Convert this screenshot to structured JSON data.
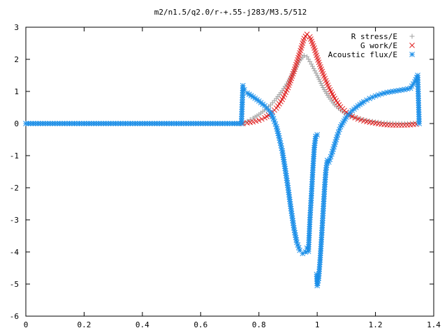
{
  "chart_data": {
    "type": "scatter",
    "title": "m2/n1.5/q2.0/r-+.55-j283/M3.5/512",
    "xlabel": "",
    "ylabel": "",
    "xlim": [
      0,
      1.4
    ],
    "ylim": [
      -6,
      3
    ],
    "xticks": [
      "0",
      "0.2",
      "0.4",
      "0.6",
      "0.8",
      "1",
      "1.2",
      "1.4"
    ],
    "yticks": [
      "3",
      "2",
      "1",
      "0",
      "-1",
      "-2",
      "-3",
      "-4",
      "-5",
      "-6"
    ],
    "legend_position": "top-right",
    "grid": false,
    "series": [
      {
        "name": "R stress/E",
        "color": "#a0a0a0",
        "marker": "plus",
        "points": [
          [
            0.0,
            0
          ],
          [
            0.05,
            0
          ],
          [
            0.1,
            0
          ],
          [
            0.15,
            0
          ],
          [
            0.2,
            0
          ],
          [
            0.25,
            0
          ],
          [
            0.3,
            0
          ],
          [
            0.35,
            0
          ],
          [
            0.4,
            0
          ],
          [
            0.45,
            0
          ],
          [
            0.5,
            0
          ],
          [
            0.55,
            0
          ],
          [
            0.6,
            0
          ],
          [
            0.65,
            0
          ],
          [
            0.7,
            0
          ],
          [
            0.745,
            0
          ],
          [
            0.76,
            0.07
          ],
          [
            0.78,
            0.17
          ],
          [
            0.8,
            0.28
          ],
          [
            0.82,
            0.42
          ],
          [
            0.84,
            0.58
          ],
          [
            0.86,
            0.78
          ],
          [
            0.88,
            1.02
          ],
          [
            0.9,
            1.3
          ],
          [
            0.92,
            1.62
          ],
          [
            0.94,
            1.96
          ],
          [
            0.955,
            2.12
          ],
          [
            0.965,
            2.08
          ],
          [
            0.98,
            1.85
          ],
          [
            1.0,
            1.5
          ],
          [
            1.02,
            1.12
          ],
          [
            1.04,
            0.82
          ],
          [
            1.06,
            0.58
          ],
          [
            1.08,
            0.42
          ],
          [
            1.1,
            0.3
          ],
          [
            1.12,
            0.22
          ],
          [
            1.14,
            0.16
          ],
          [
            1.16,
            0.12
          ],
          [
            1.18,
            0.08
          ],
          [
            1.2,
            0.05
          ],
          [
            1.22,
            0.03
          ],
          [
            1.25,
            0.01
          ],
          [
            1.28,
            0.0
          ],
          [
            1.31,
            0.0
          ],
          [
            1.34,
            0.02
          ]
        ]
      },
      {
        "name": "G work/E",
        "color": "#e02020",
        "marker": "cross",
        "points": [
          [
            0.745,
            0.0
          ],
          [
            0.76,
            0.02
          ],
          [
            0.78,
            0.05
          ],
          [
            0.8,
            0.1
          ],
          [
            0.82,
            0.18
          ],
          [
            0.84,
            0.3
          ],
          [
            0.86,
            0.48
          ],
          [
            0.88,
            0.75
          ],
          [
            0.9,
            1.12
          ],
          [
            0.92,
            1.62
          ],
          [
            0.94,
            2.2
          ],
          [
            0.955,
            2.65
          ],
          [
            0.965,
            2.78
          ],
          [
            0.975,
            2.7
          ],
          [
            0.99,
            2.35
          ],
          [
            1.0,
            2.05
          ],
          [
            1.02,
            1.55
          ],
          [
            1.04,
            1.12
          ],
          [
            1.06,
            0.78
          ],
          [
            1.08,
            0.52
          ],
          [
            1.1,
            0.35
          ],
          [
            1.12,
            0.22
          ],
          [
            1.14,
            0.14
          ],
          [
            1.16,
            0.08
          ],
          [
            1.18,
            0.04
          ],
          [
            1.2,
            0.01
          ],
          [
            1.22,
            -0.02
          ],
          [
            1.24,
            -0.04
          ],
          [
            1.26,
            -0.05
          ],
          [
            1.28,
            -0.05
          ],
          [
            1.3,
            -0.05
          ],
          [
            1.32,
            -0.04
          ],
          [
            1.34,
            -0.02
          ]
        ]
      },
      {
        "name": "Acoustic flux/E",
        "color": "#1a8ee8",
        "marker": "star",
        "points": [
          [
            0.0,
            0
          ],
          [
            0.05,
            0
          ],
          [
            0.1,
            0
          ],
          [
            0.15,
            0
          ],
          [
            0.2,
            0
          ],
          [
            0.25,
            0
          ],
          [
            0.3,
            0
          ],
          [
            0.35,
            0
          ],
          [
            0.4,
            0
          ],
          [
            0.45,
            0
          ],
          [
            0.5,
            0
          ],
          [
            0.55,
            0
          ],
          [
            0.6,
            0
          ],
          [
            0.65,
            0
          ],
          [
            0.7,
            0
          ],
          [
            0.74,
            0
          ],
          [
            0.745,
            1.18
          ],
          [
            0.75,
            1.05
          ],
          [
            0.76,
            0.95
          ],
          [
            0.78,
            0.83
          ],
          [
            0.8,
            0.7
          ],
          [
            0.82,
            0.55
          ],
          [
            0.84,
            0.35
          ],
          [
            0.85,
            0.15
          ],
          [
            0.86,
            -0.1
          ],
          [
            0.87,
            -0.45
          ],
          [
            0.88,
            -0.85
          ],
          [
            0.89,
            -1.4
          ],
          [
            0.9,
            -2.0
          ],
          [
            0.91,
            -2.65
          ],
          [
            0.92,
            -3.25
          ],
          [
            0.93,
            -3.7
          ],
          [
            0.94,
            -3.95
          ],
          [
            0.95,
            -4.05
          ],
          [
            0.96,
            -4.0
          ],
          [
            0.965,
            -3.88
          ],
          [
            0.97,
            -3.98
          ],
          [
            0.975,
            -3.0
          ],
          [
            0.98,
            -2.25
          ],
          [
            0.985,
            -1.45
          ],
          [
            0.99,
            -0.75
          ],
          [
            0.995,
            -0.4
          ],
          [
            1.0,
            -0.35
          ],
          [
            0.998,
            -4.7
          ],
          [
            1.0,
            -5.05
          ],
          [
            1.005,
            -4.82
          ],
          [
            1.01,
            -4.25
          ],
          [
            1.015,
            -3.55
          ],
          [
            1.02,
            -2.8
          ],
          [
            1.025,
            -2.05
          ],
          [
            1.03,
            -1.45
          ],
          [
            1.035,
            -1.15
          ],
          [
            1.04,
            -1.2
          ],
          [
            1.05,
            -0.95
          ],
          [
            1.06,
            -0.65
          ],
          [
            1.07,
            -0.35
          ],
          [
            1.08,
            -0.1
          ],
          [
            1.1,
            0.2
          ],
          [
            1.12,
            0.4
          ],
          [
            1.14,
            0.55
          ],
          [
            1.16,
            0.68
          ],
          [
            1.18,
            0.78
          ],
          [
            1.2,
            0.86
          ],
          [
            1.22,
            0.92
          ],
          [
            1.24,
            0.97
          ],
          [
            1.26,
            1.0
          ],
          [
            1.28,
            1.03
          ],
          [
            1.3,
            1.06
          ],
          [
            1.32,
            1.1
          ],
          [
            1.335,
            1.3
          ],
          [
            1.345,
            1.5
          ],
          [
            1.35,
            0.0
          ]
        ]
      }
    ]
  }
}
